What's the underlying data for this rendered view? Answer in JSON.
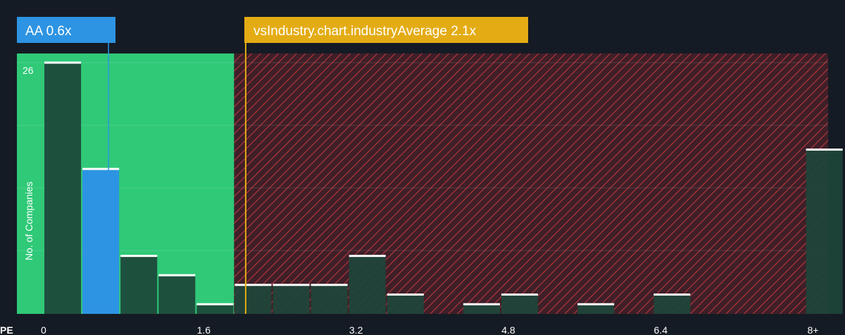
{
  "chart_data": {
    "type": "bar",
    "xlabel": "PE",
    "ylabel": "No. of Companies",
    "x_ticks": [
      "0",
      "1.6",
      "3.2",
      "4.8",
      "6.4",
      "8+"
    ],
    "y_ticks": [
      "26"
    ],
    "ylim": [
      0,
      26
    ],
    "bin_width": 0.4,
    "bars": [
      {
        "x_start": 0.0,
        "value": 26
      },
      {
        "x_start": 0.4,
        "value": 15,
        "highlight": true
      },
      {
        "x_start": 0.8,
        "value": 6
      },
      {
        "x_start": 1.2,
        "value": 4
      },
      {
        "x_start": 1.6,
        "value": 1
      },
      {
        "x_start": 2.0,
        "value": 3
      },
      {
        "x_start": 2.4,
        "value": 3
      },
      {
        "x_start": 2.8,
        "value": 3
      },
      {
        "x_start": 3.2,
        "value": 6
      },
      {
        "x_start": 3.6,
        "value": 2
      },
      {
        "x_start": 4.0,
        "value": 0
      },
      {
        "x_start": 4.4,
        "value": 1
      },
      {
        "x_start": 4.8,
        "value": 2
      },
      {
        "x_start": 5.2,
        "value": 0
      },
      {
        "x_start": 5.6,
        "value": 1
      },
      {
        "x_start": 6.0,
        "value": 0
      },
      {
        "x_start": 6.4,
        "value": 2
      },
      {
        "x_start": 6.8,
        "value": 0
      },
      {
        "x_start": 7.2,
        "value": 0
      },
      {
        "x_start": 7.6,
        "value": 0
      },
      {
        "x_start": 8.0,
        "value": 17
      }
    ],
    "company": {
      "label": "AA 0.6x",
      "value": 0.6
    },
    "industry_average": {
      "label": "vsIndustry.chart.industryAverage 2.1x",
      "value": 2.1
    },
    "fair_range_end": 2.0
  },
  "colors": {
    "background": "#151b24",
    "green_zone": "#2fc978",
    "red_zone": "#8e2830",
    "hatch": "#c73a42",
    "bar_dark": "#1d4539",
    "highlight_bar": "#2d94e3",
    "average": "#e4ac14",
    "callout": "#2d94e3",
    "text": "#ffffff"
  }
}
